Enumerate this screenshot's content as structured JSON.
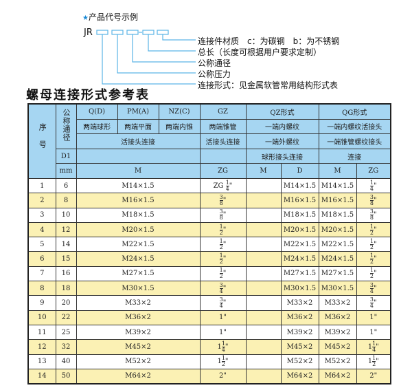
{
  "example": {
    "heading": "产品代号示例",
    "code": "JR",
    "dash": "-",
    "labels": [
      "连接件材质　c：为碳钢　b：为不锈钢",
      "总长（长度可根据用户要求定制）",
      "公称通径",
      "公称压力",
      "连接形式：见金属软管常用结构形式表"
    ],
    "accent_color": "#1a8ad6"
  },
  "table_title": "螺母连接形式参考表",
  "header": {
    "seq": "序号",
    "nominal": "公称通径",
    "qd": "Q(D)",
    "pm": "PM(A)",
    "nz": "NZ(C)",
    "gz": "GZ",
    "qz": "QZ形式",
    "qg": "QG形式",
    "qd2": "两端球形",
    "pm2": "两端平面",
    "nz2": "两端内锥",
    "gz2": "两端锥管",
    "qz2": "一端内螺纹",
    "qg2": "一端内螺纹活接头",
    "union": "活接头连接",
    "gz3": "活接头连接",
    "qz3": "一端外螺纹",
    "qg3": "一端锥管螺纹接头",
    "d1": "D1",
    "qz4": "球形接头连接",
    "qg4": "连接",
    "mm": "mm",
    "m": "M",
    "zg": "ZG",
    "qz_m": "M",
    "qz_d": "D",
    "qg_m": "M",
    "qg_zg": "ZG"
  },
  "rows": [
    {
      "no": "1",
      "dn": "6",
      "m": "M14×1.5",
      "zg": {
        "pre": "ZG",
        "whole": "",
        "num": "1",
        "den": "4",
        "suf": "\""
      },
      "qz_m": "",
      "qz_d": "M14×1.5",
      "qg_m": "M14×1.5",
      "qg_zg": {
        "pre": "",
        "whole": "",
        "num": "1",
        "den": "4",
        "suf": "\""
      }
    },
    {
      "no": "2",
      "dn": "8",
      "m": "M16×1.5",
      "zg": {
        "pre": "",
        "whole": "",
        "num": "3",
        "den": "8",
        "suf": "\""
      },
      "qz_m": "",
      "qz_d": "M16×1.5",
      "qg_m": "M16×1.5",
      "qg_zg": {
        "pre": "",
        "whole": "",
        "num": "3",
        "den": "8",
        "suf": "\""
      }
    },
    {
      "no": "3",
      "dn": "10",
      "m": "M18×1.5",
      "zg": {
        "pre": "",
        "whole": "",
        "num": "3",
        "den": "8",
        "suf": "\""
      },
      "qz_m": "",
      "qz_d": "M18×1.5",
      "qg_m": "M18×1.5",
      "qg_zg": {
        "pre": "",
        "whole": "",
        "num": "3",
        "den": "8",
        "suf": "\""
      }
    },
    {
      "no": "4",
      "dn": "12",
      "m": "M20×1.5",
      "zg": {
        "pre": "",
        "whole": "",
        "num": "1",
        "den": "2",
        "suf": "\""
      },
      "qz_m": "",
      "qz_d": "M20×1.5",
      "qg_m": "M20×1.5",
      "qg_zg": {
        "pre": "",
        "whole": "",
        "num": "1",
        "den": "2",
        "suf": "\""
      }
    },
    {
      "no": "5",
      "dn": "14",
      "m": "M22×1.5",
      "zg": {
        "pre": "",
        "whole": "",
        "num": "1",
        "den": "2",
        "suf": "\""
      },
      "qz_m": "",
      "qz_d": "M22×1.5",
      "qg_m": "M22×1.5",
      "qg_zg": {
        "pre": "",
        "whole": "",
        "num": "1",
        "den": "2",
        "suf": "\""
      }
    },
    {
      "no": "6",
      "dn": "15",
      "m": "M24×1.5",
      "zg": {
        "pre": "",
        "whole": "",
        "num": "1",
        "den": "2",
        "suf": "\""
      },
      "qz_m": "",
      "qz_d": "M24×1.5",
      "qg_m": "M24×1.5",
      "qg_zg": {
        "pre": "",
        "whole": "",
        "num": "1",
        "den": "2",
        "suf": "\""
      }
    },
    {
      "no": "7",
      "dn": "16",
      "m": "M27×1.5",
      "zg": {
        "pre": "",
        "whole": "",
        "num": "1",
        "den": "2",
        "suf": "\""
      },
      "qz_m": "",
      "qz_d": "M27×1.5",
      "qg_m": "M27×1.5",
      "qg_zg": {
        "pre": "",
        "whole": "",
        "num": "1",
        "den": "2",
        "suf": "\""
      }
    },
    {
      "no": "8",
      "dn": "18",
      "m": "M30×1.5",
      "zg": {
        "pre": "",
        "whole": "",
        "num": "3",
        "den": "4",
        "suf": "\""
      },
      "qz_m": "",
      "qz_d": "M30×1.5",
      "qg_m": "M30×1.5",
      "qg_zg": {
        "pre": "",
        "whole": "",
        "num": "3",
        "den": "4",
        "suf": "\""
      }
    },
    {
      "no": "9",
      "dn": "20",
      "m": "M33×2",
      "zg": {
        "pre": "",
        "whole": "",
        "num": "3",
        "den": "4",
        "suf": "\""
      },
      "qz_m": "",
      "qz_d": "M33×2",
      "qg_m": "M33×2",
      "qg_zg": {
        "pre": "",
        "whole": "",
        "num": "3",
        "den": "4",
        "suf": "\""
      }
    },
    {
      "no": "10",
      "dn": "22",
      "m": "M36×2",
      "zg": {
        "pre": "",
        "whole": "1\"",
        "num": "",
        "den": "",
        "suf": ""
      },
      "qz_m": "",
      "qz_d": "M36×2",
      "qg_m": "M36×2",
      "qg_zg": {
        "pre": "",
        "whole": "1\"",
        "num": "",
        "den": "",
        "suf": ""
      }
    },
    {
      "no": "11",
      "dn": "25",
      "m": "M39×2",
      "zg": {
        "pre": "",
        "whole": "1\"",
        "num": "",
        "den": "",
        "suf": ""
      },
      "qz_m": "",
      "qz_d": "M39×2",
      "qg_m": "M39×2",
      "qg_zg": {
        "pre": "",
        "whole": "1\"",
        "num": "",
        "den": "",
        "suf": ""
      }
    },
    {
      "no": "12",
      "dn": "32",
      "m": "M45×2",
      "zg": {
        "pre": "",
        "whole": "1",
        "num": "1",
        "den": "4",
        "suf": "\""
      },
      "qz_m": "",
      "qz_d": "M45×2",
      "qg_m": "M45×2",
      "qg_zg": {
        "pre": "",
        "whole": "1",
        "num": "1",
        "den": "4",
        "suf": "\""
      }
    },
    {
      "no": "13",
      "dn": "40",
      "m": "M52×2",
      "zg": {
        "pre": "",
        "whole": "1",
        "num": "1",
        "den": "2",
        "suf": "\""
      },
      "qz_m": "",
      "qz_d": "M52×2",
      "qg_m": "M52×2",
      "qg_zg": {
        "pre": "",
        "whole": "1",
        "num": "1",
        "den": "2",
        "suf": "\""
      }
    },
    {
      "no": "14",
      "dn": "50",
      "m": "M64×2",
      "zg": {
        "pre": "",
        "whole": "2\"",
        "num": "",
        "den": "",
        "suf": ""
      },
      "qz_m": "",
      "qz_d": "M64×2",
      "qg_m": "M64×2",
      "qg_zg": {
        "pre": "",
        "whole": "2\"",
        "num": "",
        "den": "",
        "suf": ""
      }
    }
  ]
}
